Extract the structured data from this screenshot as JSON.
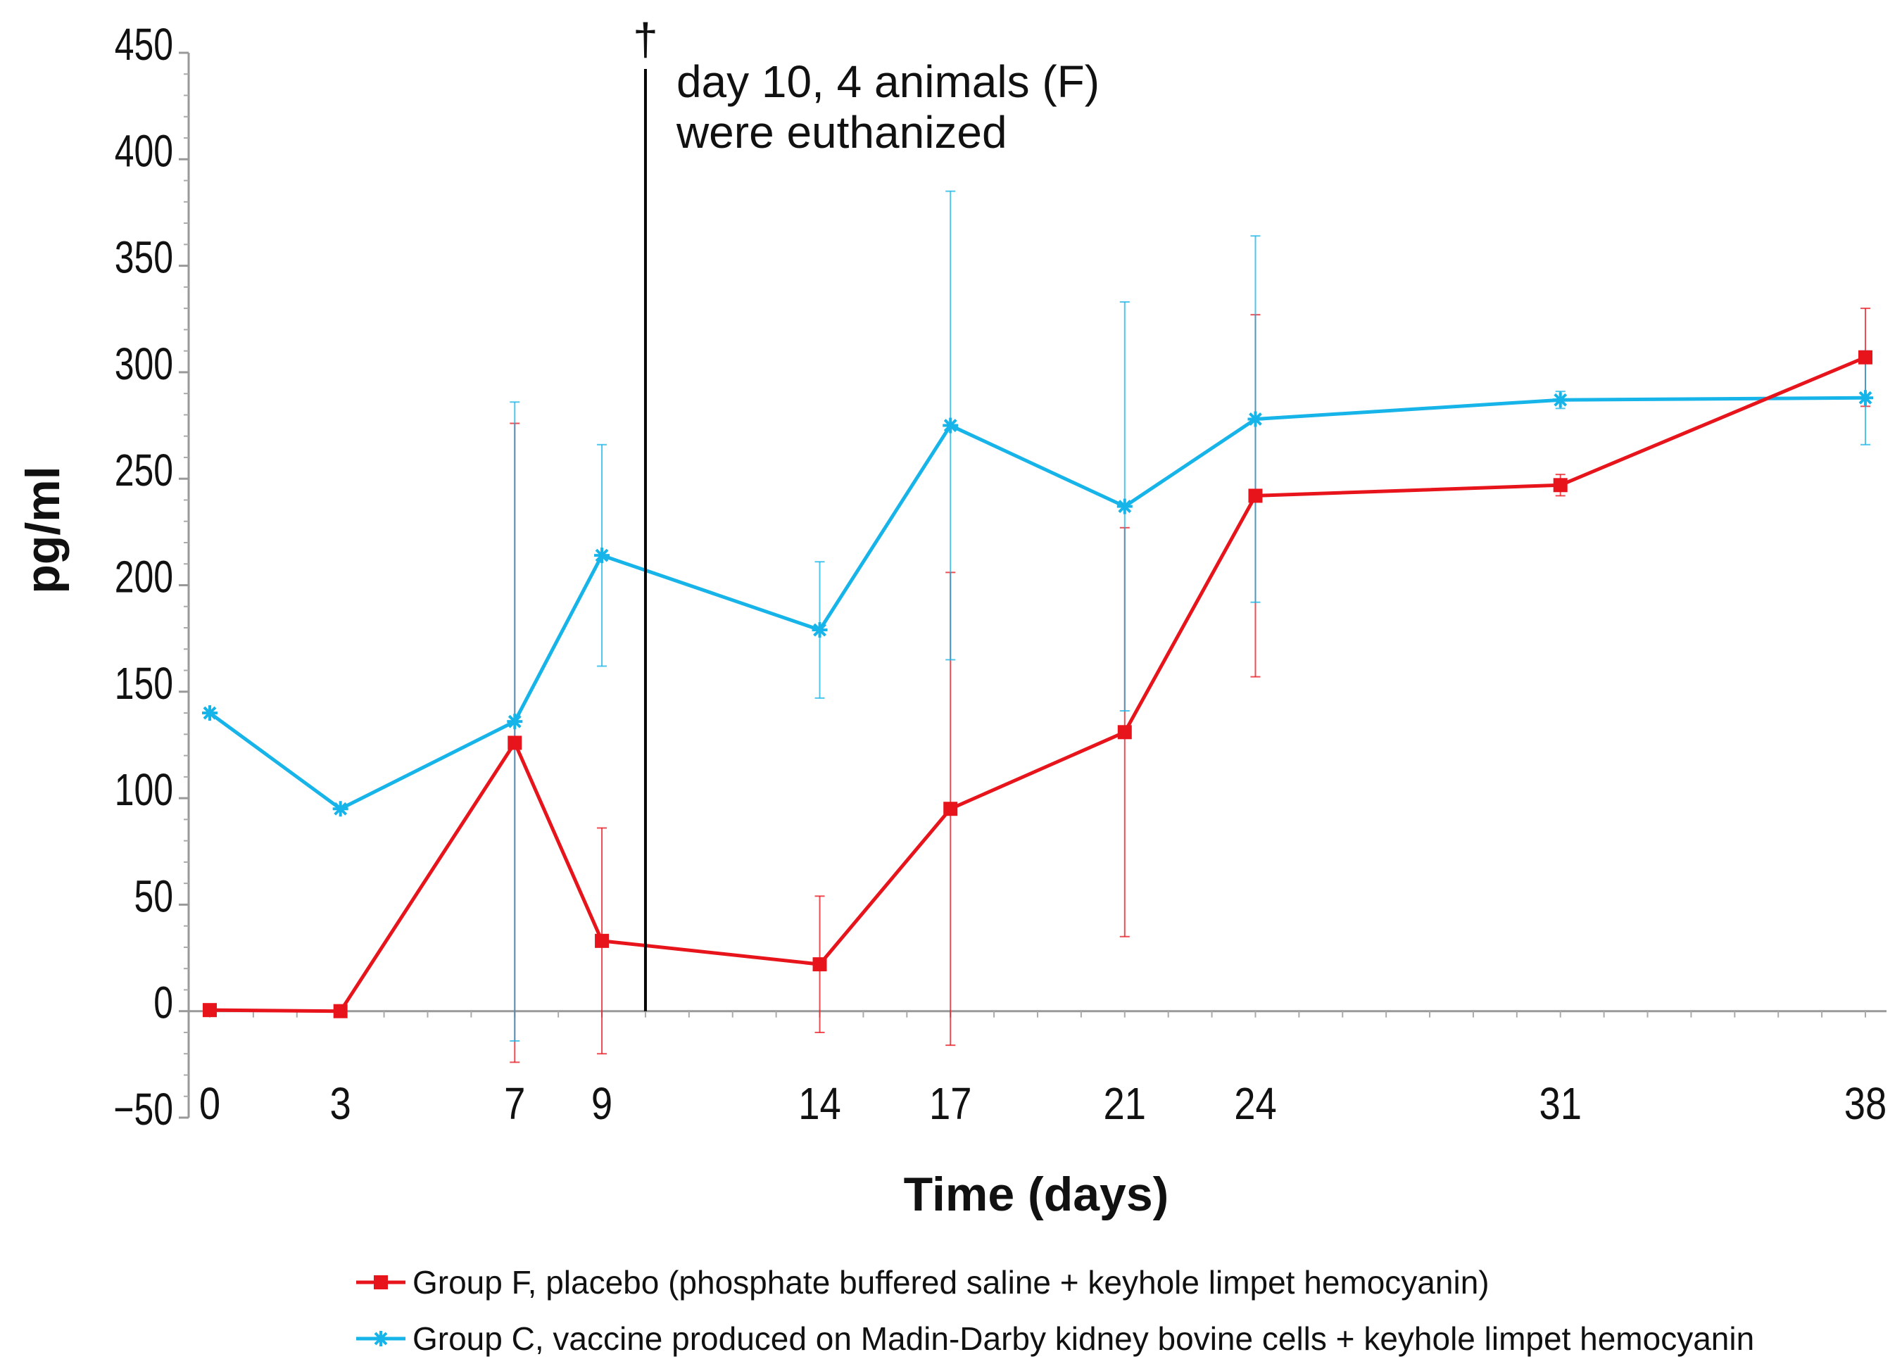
{
  "chart_data": {
    "type": "line",
    "xlabel": "Time (days)",
    "ylabel": "pg/ml",
    "x": [
      0,
      3,
      7,
      9,
      14,
      17,
      21,
      24,
      31,
      38
    ],
    "x_tick_labels": [
      "0",
      "3",
      "7",
      "9",
      "14",
      "17",
      "21",
      "24",
      "31",
      "38"
    ],
    "ylim": [
      -50,
      450
    ],
    "y_ticks": [
      450,
      400,
      350,
      300,
      250,
      200,
      150,
      100,
      50,
      0,
      -50
    ],
    "y_tick_labels": [
      "450",
      "400",
      "350",
      "300",
      "250",
      "200",
      "150",
      "100",
      "50",
      "0",
      "−50"
    ],
    "grid": false,
    "legend_position": "bottom",
    "series": [
      {
        "name": "Group F, placebo (phosphate buffered saline + keyhole limpet hemocyanin)",
        "color": "#e8141c",
        "marker": "square",
        "values": [
          0.5,
          0,
          126,
          33,
          22,
          95,
          131,
          242,
          247,
          307
        ],
        "error": [
          0,
          0,
          150,
          53,
          32,
          111,
          96,
          85,
          5,
          23
        ]
      },
      {
        "name": "Group C, vaccine produced on Madin-Darby kidney bovine cells + keyhole limpet hemocyanin",
        "color": "#16b4e8",
        "marker": "asterisk",
        "values": [
          140,
          95,
          136,
          214,
          179,
          275,
          237,
          278,
          287,
          288
        ],
        "error": [
          0,
          0,
          150,
          52,
          32,
          110,
          96,
          86,
          4,
          22
        ]
      }
    ],
    "annotations": [
      {
        "x": 10,
        "type": "vertical-line",
        "symbol": "†",
        "text_line1": "day 10, 4 animals (F)",
        "text_line2": "were euthanized"
      }
    ]
  }
}
